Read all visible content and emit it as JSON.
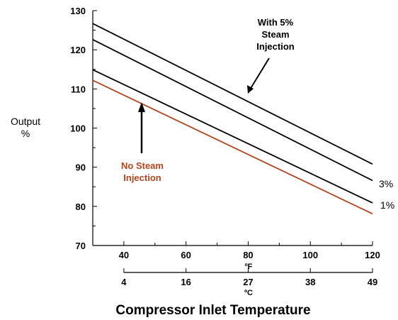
{
  "chart_data": {
    "type": "line",
    "title": "Compressor Inlet Temperature",
    "ylabel": "Output %",
    "ylabel_lines": [
      "Output",
      "%"
    ],
    "x_unit_f": "ºF",
    "x_unit_c": "ºC",
    "xlim": [
      30,
      120
    ],
    "ylim": [
      70,
      130
    ],
    "yticks": [
      70,
      80,
      90,
      100,
      110,
      120,
      130
    ],
    "xticks_f": [
      40,
      60,
      80,
      100,
      120
    ],
    "xticks_c": [
      {
        "label": "4",
        "f": 40
      },
      {
        "label": "16",
        "f": 60
      },
      {
        "label": "27",
        "f": 80
      },
      {
        "label": "38",
        "f": 100
      },
      {
        "label": "49",
        "f": 120
      }
    ],
    "grid": false,
    "series": [
      {
        "x": [
          30,
          120
        ],
        "y": [
          126.7,
          90.8
        ],
        "color": "#000000"
      },
      {
        "x": [
          30,
          120
        ],
        "y": [
          122.6,
          86.6
        ],
        "color": "#000000",
        "end_label": "3%"
      },
      {
        "x": [
          30,
          120
        ],
        "y": [
          114.9,
          80.9
        ],
        "color": "#000000",
        "end_label": "1%"
      },
      {
        "x": [
          30,
          120
        ],
        "y": [
          112.2,
          78.1
        ],
        "color": "#b5441c"
      }
    ],
    "annotations": [
      {
        "lines": [
          "With 5%",
          "Steam",
          "Injection"
        ],
        "color": "#000000"
      },
      {
        "lines": [
          "No Steam",
          "Injection"
        ],
        "color": "#b5441c"
      }
    ]
  }
}
